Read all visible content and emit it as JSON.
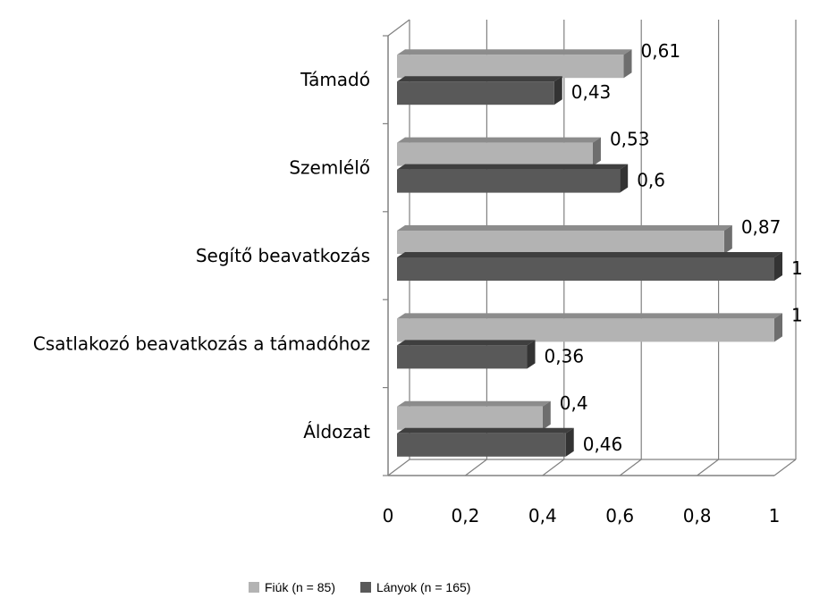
{
  "chart_data": {
    "type": "bar",
    "orientation": "horizontal",
    "style": "3d",
    "categories": [
      "Támadó",
      "Szemlélő",
      "Segítő beavatkozás",
      "Csatlakozó beavatkozás a támadóhoz",
      "Áldozat"
    ],
    "series": [
      {
        "name": "Fiúk (n = 85)",
        "values": [
          0.61,
          0.53,
          0.87,
          1,
          0.4
        ],
        "labels": [
          "0,61",
          "0,53",
          "0,87",
          "1",
          "0,4"
        ],
        "color": "#b3b3b3"
      },
      {
        "name": "Lányok (n = 165)",
        "values": [
          0.43,
          0.6,
          1,
          0.36,
          0.46
        ],
        "labels": [
          "0,43",
          "0,6",
          "1",
          "0,36",
          "0,46"
        ],
        "color": "#595959"
      }
    ],
    "x_ticks": [
      "0",
      "0,2",
      "0,4",
      "0,6",
      "0,8",
      "1"
    ],
    "xlim": [
      0,
      1
    ],
    "grid": true,
    "legend_position": "bottom"
  }
}
